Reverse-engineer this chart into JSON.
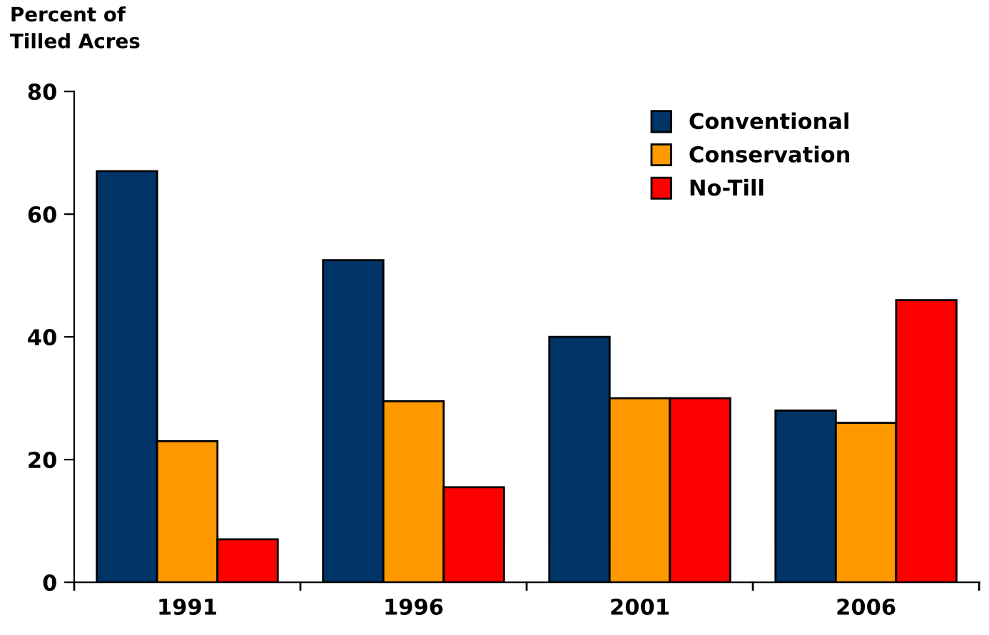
{
  "chart_data": {
    "type": "bar",
    "ylabel": "Percent of\nTilled Acres",
    "categories": [
      "1991",
      "1996",
      "2001",
      "2006"
    ],
    "series": [
      {
        "name": "Conventional",
        "color": "#003366",
        "values": [
          67,
          52.5,
          40,
          28
        ]
      },
      {
        "name": "Conservation",
        "color": "#ff9900",
        "values": [
          23,
          29.5,
          30,
          26
        ]
      },
      {
        "name": "No-Till",
        "color": "#ff0000",
        "values": [
          7,
          15.5,
          30,
          46
        ]
      }
    ],
    "ylim": [
      0,
      80
    ],
    "yticks": [
      0,
      20,
      40,
      60,
      80
    ],
    "grid": false,
    "legend": "top right"
  }
}
